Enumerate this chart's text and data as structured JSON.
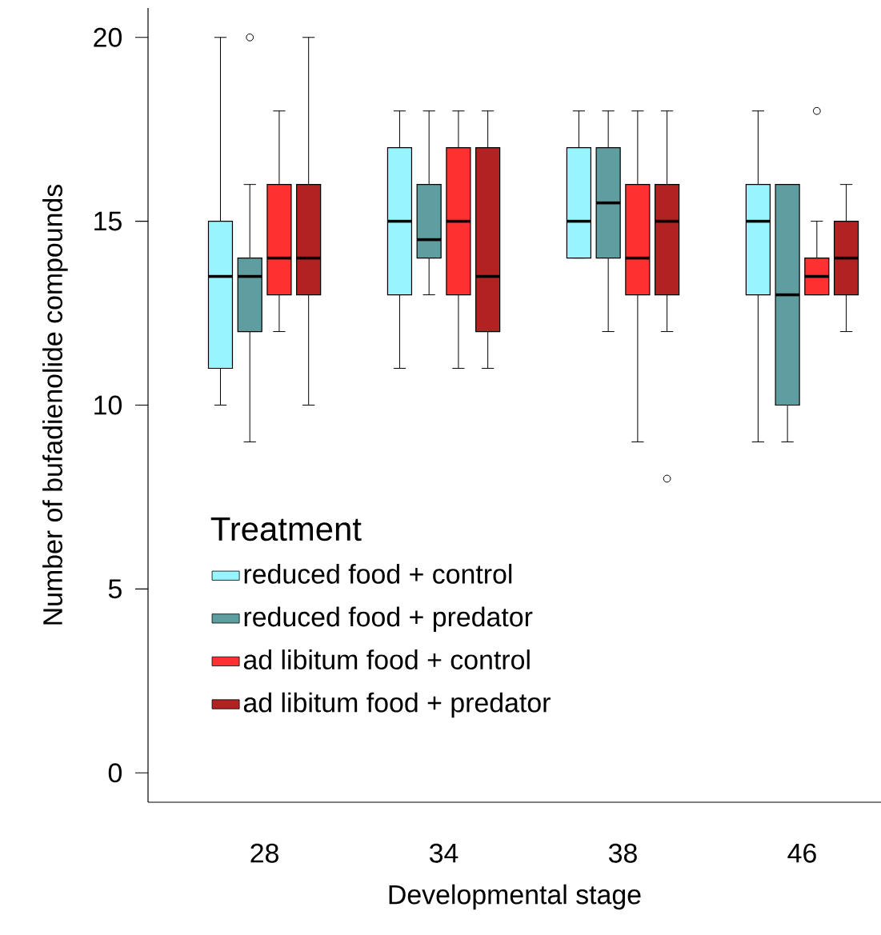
{
  "chart_data": {
    "type": "box",
    "xlabel": "Developmental stage",
    "ylabel": "Number of bufadienolide compounds",
    "legend_title": "Treatment",
    "legend": "bottom left",
    "grid": false,
    "categories": [
      "28",
      "34",
      "38",
      "46"
    ],
    "ylim": [
      -0.8,
      20.8
    ],
    "yticks": [
      0,
      5,
      10,
      15,
      20
    ],
    "series": [
      {
        "name": "reduced food + control",
        "color": "#98f5ff",
        "boxes": [
          {
            "low": 10,
            "q1": 11,
            "median": 13.5,
            "q3": 15,
            "high": 20
          },
          {
            "low": 11,
            "q1": 13,
            "median": 15,
            "q3": 17,
            "high": 18
          },
          {
            "low": 14,
            "q1": 14,
            "median": 15,
            "q3": 17,
            "high": 18
          },
          {
            "low": 9,
            "q1": 13,
            "median": 15,
            "q3": 16,
            "high": 18
          }
        ]
      },
      {
        "name": "reduced food + predator",
        "color": "#5f9ea0",
        "boxes": [
          {
            "low": 9,
            "q1": 12,
            "median": 13.5,
            "q3": 14,
            "high": 16,
            "outliers": [
              20
            ]
          },
          {
            "low": 13,
            "q1": 14,
            "median": 14.5,
            "q3": 16,
            "high": 18
          },
          {
            "low": 12,
            "q1": 14,
            "median": 15.5,
            "q3": 17,
            "high": 18
          },
          {
            "low": 9,
            "q1": 10,
            "median": 13,
            "q3": 16,
            "high": 16
          }
        ]
      },
      {
        "name": "ad libitum food + control",
        "color": "#ff3030",
        "boxes": [
          {
            "low": 12,
            "q1": 13,
            "median": 14,
            "q3": 16,
            "high": 18
          },
          {
            "low": 11,
            "q1": 13,
            "median": 15,
            "q3": 17,
            "high": 18
          },
          {
            "low": 9,
            "q1": 13,
            "median": 14,
            "q3": 16,
            "high": 18
          },
          {
            "low": 13,
            "q1": 13,
            "median": 13.5,
            "q3": 14,
            "high": 15,
            "outliers": [
              18
            ]
          }
        ]
      },
      {
        "name": "ad libitum food + predator",
        "color": "#b22222",
        "boxes": [
          {
            "low": 10,
            "q1": 13,
            "median": 14,
            "q3": 16,
            "high": 20
          },
          {
            "low": 11,
            "q1": 12,
            "median": 13.5,
            "q3": 17,
            "high": 18
          },
          {
            "low": 12,
            "q1": 13,
            "median": 15,
            "q3": 16,
            "high": 18,
            "outliers": [
              8
            ]
          },
          {
            "low": 12,
            "q1": 13,
            "median": 14,
            "q3": 15,
            "high": 16
          }
        ]
      }
    ]
  }
}
